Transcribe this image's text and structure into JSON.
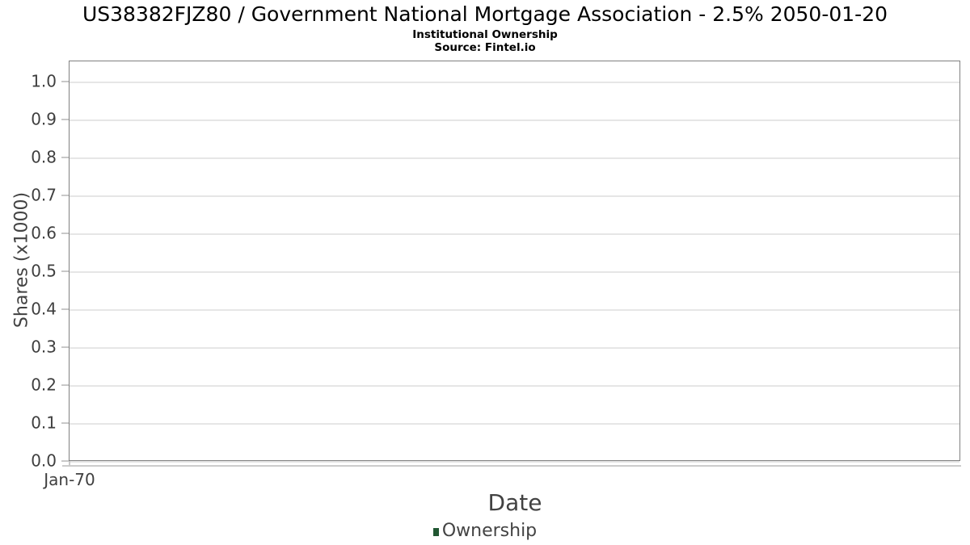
{
  "header": {
    "title": "US38382FJZ80 / Government National Mortgage Association - 2.5% 2050-01-20",
    "subtitle": "Institutional Ownership",
    "source": "Source: Fintel.io"
  },
  "chart_data": {
    "type": "line",
    "title": "US38382FJZ80 / Government National Mortgage Association - 2.5% 2050-01-20",
    "subtitle": "Institutional Ownership",
    "source": "Source: Fintel.io",
    "xlabel": "Date",
    "ylabel": "Shares (x1000)",
    "x_tick_labels": [
      "Jan-70"
    ],
    "y_tick_labels": [
      "0.0",
      "0.1",
      "0.2",
      "0.3",
      "0.4",
      "0.5",
      "0.6",
      "0.7",
      "0.8",
      "0.9",
      "1.0"
    ],
    "ylim": [
      0,
      1.055
    ],
    "grid": true,
    "legend_position": "bottom",
    "series": [
      {
        "name": "Ownership",
        "color": "#215732",
        "x": [],
        "values": []
      }
    ]
  },
  "colors": {
    "legend_green": "#215732",
    "plot_border": "#808080",
    "gridline": "#e6e6e6",
    "tick": "#c8c8c8",
    "axis_line": "#cccccc",
    "axis_text": "#3f3f3f",
    "title_text": "#000000"
  }
}
